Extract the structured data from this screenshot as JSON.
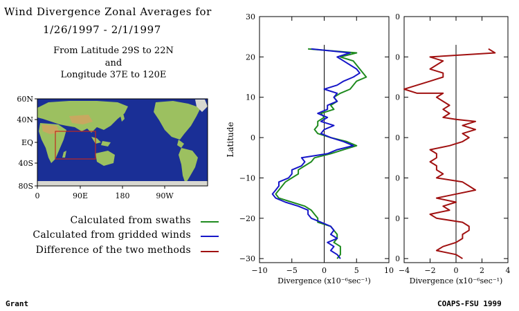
{
  "header": {
    "title_line1": "Wind Divergence Zonal Averages for",
    "title_line2": "1/26/1997 - 2/1/1997",
    "sub_line1": "From Latitude 29S to 22N",
    "sub_line2": "and",
    "sub_line3": "Longitude 37E to 120E"
  },
  "map": {
    "y_ticks": [
      "60N",
      "40N",
      "EQ",
      "40S",
      "80S"
    ],
    "x_ticks": [
      "0",
      "90E",
      "180",
      "90W"
    ],
    "ocean_color": "#1a2f96",
    "land_color": "#9cc060",
    "box_color": "#c0281e"
  },
  "legend": {
    "items": [
      {
        "label": "Calculated from swaths",
        "color": "#1e8a1e"
      },
      {
        "label": "Calculated from gridded winds",
        "color": "#1616c8"
      },
      {
        "label": "Difference of the two methods",
        "color": "#a01010"
      }
    ]
  },
  "footer": {
    "left": "Grant",
    "right": "COAPS-FSU 1999"
  },
  "chart_data": [
    {
      "type": "line",
      "orientation": "vertical",
      "ylabel": "Latitude",
      "xlabel": "Divergence (x10⁻⁶sec⁻¹)",
      "xlim": [
        -10,
        10
      ],
      "ylim": [
        -31,
        30
      ],
      "x_ticks": [
        "−10",
        "−5",
        "0",
        "5",
        "10"
      ],
      "y_ticks": [
        "30",
        "20",
        "10",
        "0",
        "−10",
        "−20",
        "−30"
      ],
      "y_tick_values": [
        30,
        20,
        10,
        0,
        -10,
        -20,
        -30
      ],
      "x_tick_values": [
        -10,
        -5,
        0,
        5,
        10
      ],
      "series": [
        {
          "color": "#1e8a1e",
          "points": [
            [
              -2.5,
              22
            ],
            [
              5,
              21
            ],
            [
              2.5,
              20
            ],
            [
              4.5,
              19
            ],
            [
              5.5,
              17
            ],
            [
              6.5,
              15
            ],
            [
              5,
              14
            ],
            [
              4,
              12
            ],
            [
              2.5,
              11
            ],
            [
              1.5,
              10
            ],
            [
              2,
              9
            ],
            [
              1,
              8
            ],
            [
              1.5,
              7
            ],
            [
              -0.5,
              6
            ],
            [
              0,
              5
            ],
            [
              -1,
              4
            ],
            [
              -1,
              3
            ],
            [
              -1.5,
              2
            ],
            [
              -1,
              1
            ],
            [
              1,
              0
            ],
            [
              3.5,
              -1
            ],
            [
              5,
              -2
            ],
            [
              3,
              -3
            ],
            [
              1,
              -4
            ],
            [
              -1.5,
              -5
            ],
            [
              -2,
              -6
            ],
            [
              -3,
              -7
            ],
            [
              -4,
              -8
            ],
            [
              -4,
              -9
            ],
            [
              -5,
              -10
            ],
            [
              -6,
              -11
            ],
            [
              -6.5,
              -12
            ],
            [
              -7,
              -13
            ],
            [
              -7.5,
              -14
            ],
            [
              -7,
              -15
            ],
            [
              -5,
              -16
            ],
            [
              -3,
              -17
            ],
            [
              -2,
              -18
            ],
            [
              -1.5,
              -19
            ],
            [
              -1,
              -20
            ],
            [
              -1,
              -21
            ],
            [
              1,
              -22
            ],
            [
              1.5,
              -23
            ],
            [
              2,
              -24
            ],
            [
              2,
              -25
            ],
            [
              1.5,
              -26
            ],
            [
              2.5,
              -27
            ],
            [
              2.5,
              -28
            ],
            [
              2.5,
              -29
            ],
            [
              2,
              -30
            ]
          ]
        },
        {
          "color": "#1616c8",
          "points": [
            [
              -2,
              22
            ],
            [
              4,
              21
            ],
            [
              2,
              20
            ],
            [
              3,
              19
            ],
            [
              4,
              18
            ],
            [
              5,
              17
            ],
            [
              5.5,
              16
            ],
            [
              4.5,
              15
            ],
            [
              3,
              14
            ],
            [
              2,
              13
            ],
            [
              0,
              12
            ],
            [
              2,
              11
            ],
            [
              1.5,
              10
            ],
            [
              2,
              9
            ],
            [
              0.5,
              8
            ],
            [
              0.5,
              7
            ],
            [
              -1,
              6
            ],
            [
              0.5,
              5
            ],
            [
              -0.5,
              4
            ],
            [
              1.5,
              3
            ],
            [
              0,
              2
            ],
            [
              -0.5,
              1
            ],
            [
              1,
              0
            ],
            [
              3,
              -1
            ],
            [
              4.5,
              -2
            ],
            [
              2,
              -3
            ],
            [
              0.5,
              -4
            ],
            [
              -3.5,
              -5
            ],
            [
              -3,
              -6
            ],
            [
              -3.5,
              -7
            ],
            [
              -5,
              -8
            ],
            [
              -5,
              -9
            ],
            [
              -5.5,
              -10
            ],
            [
              -7,
              -11
            ],
            [
              -7,
              -12
            ],
            [
              -7.5,
              -13
            ],
            [
              -8,
              -14
            ],
            [
              -7.5,
              -15
            ],
            [
              -6,
              -16
            ],
            [
              -4,
              -17
            ],
            [
              -2.5,
              -18
            ],
            [
              -2.5,
              -19
            ],
            [
              -2,
              -20
            ],
            [
              -0.5,
              -21
            ],
            [
              1,
              -22
            ],
            [
              1.5,
              -23
            ],
            [
              1,
              -24
            ],
            [
              2,
              -25
            ],
            [
              0.5,
              -26
            ],
            [
              1.5,
              -27
            ],
            [
              1,
              -28
            ],
            [
              2,
              -29
            ],
            [
              2.5,
              -30
            ]
          ]
        }
      ]
    },
    {
      "type": "line",
      "orientation": "vertical",
      "xlabel": "Divergence (x10⁻⁶sec⁻¹)",
      "xlim": [
        -4,
        4
      ],
      "ylim": [
        -31,
        30
      ],
      "x_ticks": [
        "−4",
        "−2",
        "0",
        "2",
        "4"
      ],
      "y_ticks": [
        "30",
        "20",
        "10",
        "0",
        "−10",
        "−20",
        "−30"
      ],
      "y_tick_values": [
        30,
        20,
        10,
        0,
        -10,
        -20,
        -30
      ],
      "x_tick_values": [
        -4,
        -2,
        0,
        2,
        4
      ],
      "series": [
        {
          "color": "#a01010",
          "points": [
            [
              2.5,
              22
            ],
            [
              3,
              21
            ],
            [
              -2,
              20
            ],
            [
              -1,
              19
            ],
            [
              -1.5,
              18
            ],
            [
              -2,
              17
            ],
            [
              -1,
              16
            ],
            [
              -1,
              15
            ],
            [
              -2,
              14
            ],
            [
              -3,
              13
            ],
            [
              -4,
              12
            ],
            [
              -3,
              11
            ],
            [
              -1,
              11
            ],
            [
              -1.5,
              10
            ],
            [
              -1,
              9
            ],
            [
              -0.5,
              8
            ],
            [
              -1,
              7
            ],
            [
              -0.5,
              6
            ],
            [
              -1,
              5
            ],
            [
              0,
              4.5
            ],
            [
              1.5,
              4
            ],
            [
              0.5,
              3
            ],
            [
              1.5,
              2
            ],
            [
              0.5,
              1
            ],
            [
              1,
              0
            ],
            [
              0.5,
              -1
            ],
            [
              -0.5,
              -2
            ],
            [
              -2,
              -3
            ],
            [
              -1.5,
              -4
            ],
            [
              -1.5,
              -5
            ],
            [
              -2,
              -6
            ],
            [
              -1.5,
              -7
            ],
            [
              -1.5,
              -8
            ],
            [
              -1,
              -9
            ],
            [
              -1.5,
              -10
            ],
            [
              0.5,
              -11
            ],
            [
              1,
              -12
            ],
            [
              1.5,
              -13
            ],
            [
              0,
              -14
            ],
            [
              -1.5,
              -15
            ],
            [
              0,
              -16
            ],
            [
              -1,
              -17
            ],
            [
              -0.5,
              -18
            ],
            [
              -2,
              -19
            ],
            [
              -1.5,
              -20
            ],
            [
              0.5,
              -21
            ],
            [
              1,
              -22
            ],
            [
              1,
              -23
            ],
            [
              0.5,
              -24
            ],
            [
              0.5,
              -25
            ],
            [
              0,
              -26
            ],
            [
              -1,
              -27
            ],
            [
              -1.5,
              -28
            ],
            [
              0,
              -29
            ],
            [
              0.5,
              -30
            ]
          ]
        }
      ]
    }
  ]
}
